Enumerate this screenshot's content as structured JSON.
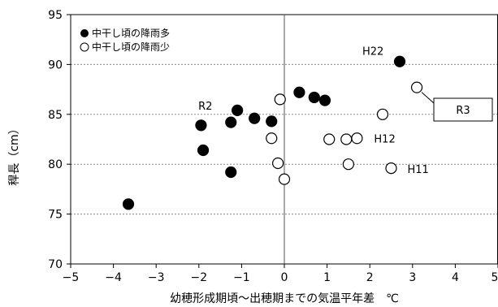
{
  "chart_data": {
    "type": "scatter",
    "xlabel": "幼穂形成期頃〜出穂期までの気温平年差　℃",
    "ylabel": "稈長（cm）",
    "xlim": [
      -5,
      5
    ],
    "ylim": [
      70,
      95
    ],
    "x_ticks": [
      -5,
      -4,
      -3,
      -2,
      -1,
      0,
      1,
      2,
      3,
      4,
      5
    ],
    "y_ticks": [
      70,
      75,
      80,
      85,
      90,
      95
    ],
    "grid": "horizontal dotted",
    "legend_position": "top-left",
    "series": [
      {
        "name": "中干し頃の降雨多",
        "marker": "filled-circle",
        "color": "#000000",
        "points": [
          {
            "x": -3.65,
            "y": 76.0
          },
          {
            "x": -1.95,
            "y": 83.9
          },
          {
            "x": -1.9,
            "y": 81.4
          },
          {
            "x": -1.25,
            "y": 84.2
          },
          {
            "x": -1.25,
            "y": 79.2
          },
          {
            "x": -1.1,
            "y": 85.4
          },
          {
            "x": -0.7,
            "y": 84.6
          },
          {
            "x": -0.3,
            "y": 84.3
          },
          {
            "x": 0.35,
            "y": 87.2
          },
          {
            "x": 0.7,
            "y": 86.7
          },
          {
            "x": 0.95,
            "y": 86.4
          },
          {
            "x": 2.7,
            "y": 90.3
          }
        ]
      },
      {
        "name": "中干し頃の降雨少",
        "marker": "open-circle",
        "color": "#000000",
        "points": [
          {
            "x": -0.1,
            "y": 86.5
          },
          {
            "x": -0.3,
            "y": 82.6
          },
          {
            "x": -0.15,
            "y": 80.1
          },
          {
            "x": 0.0,
            "y": 78.5
          },
          {
            "x": 1.05,
            "y": 82.5
          },
          {
            "x": 1.45,
            "y": 82.5
          },
          {
            "x": 1.7,
            "y": 82.6
          },
          {
            "x": 1.5,
            "y": 80.0
          },
          {
            "x": 2.3,
            "y": 85.0
          },
          {
            "x": 2.5,
            "y": 79.6
          },
          {
            "x": 3.1,
            "y": 87.7
          }
        ]
      }
    ],
    "annotations": [
      {
        "label": "H22",
        "x": 2.7,
        "y": 90.3
      },
      {
        "label": "R2",
        "x": -1.1,
        "y": 85.4
      },
      {
        "label": "H12",
        "x": 1.7,
        "y": 82.6
      },
      {
        "label": "H11",
        "x": 2.5,
        "y": 79.6
      },
      {
        "label": "R3",
        "x": 3.1,
        "y": 87.7,
        "callout": true
      }
    ]
  }
}
